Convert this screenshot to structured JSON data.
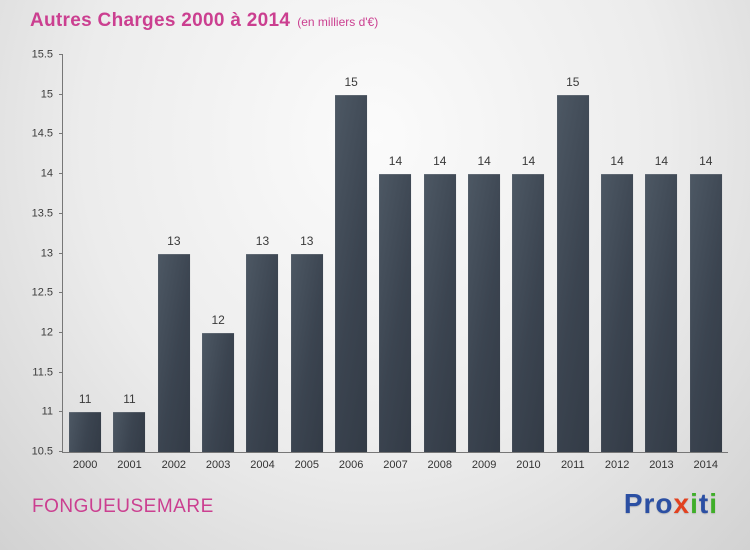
{
  "header": {
    "title": "Autres Charges 2000 à 2014",
    "subtitle": "(en milliers d'€)"
  },
  "footer": {
    "company": "FONGUEUSEMARE"
  },
  "logo": {
    "name": "Proxiti",
    "letters": [
      {
        "char": "P",
        "color": "#2b4fa3"
      },
      {
        "char": "r",
        "color": "#2b4fa3"
      },
      {
        "char": "o",
        "color": "#2b4fa3"
      },
      {
        "char": "x",
        "color": "#e2411f"
      },
      {
        "char": "i",
        "color": "#3fae29"
      },
      {
        "char": "t",
        "color": "#2b4fa3"
      },
      {
        "char": "i",
        "color": "#3fae29"
      }
    ]
  },
  "colors": {
    "accent_pink": "#cb3f90",
    "bar_dark": "#39424d",
    "bar_light": "#4d5864",
    "axis": "#777777"
  },
  "chart_data": {
    "type": "bar",
    "title": "Autres Charges 2000 à 2014",
    "subtitle": "(en milliers d'€)",
    "categories": [
      "2000",
      "2001",
      "2002",
      "2003",
      "2004",
      "2005",
      "2006",
      "2007",
      "2008",
      "2009",
      "2010",
      "2011",
      "2012",
      "2013",
      "2014"
    ],
    "values": [
      11,
      11,
      13,
      12,
      13,
      13,
      15,
      14,
      14,
      14,
      14,
      15,
      14,
      14,
      14
    ],
    "xlabel": "",
    "ylabel": "",
    "ylim": [
      10.5,
      15.5
    ],
    "yticks": [
      10.5,
      11,
      11.5,
      12,
      12.5,
      13,
      13.5,
      14,
      14.5,
      15,
      15.5
    ],
    "grid": false,
    "legend": false,
    "data_labels": true
  }
}
